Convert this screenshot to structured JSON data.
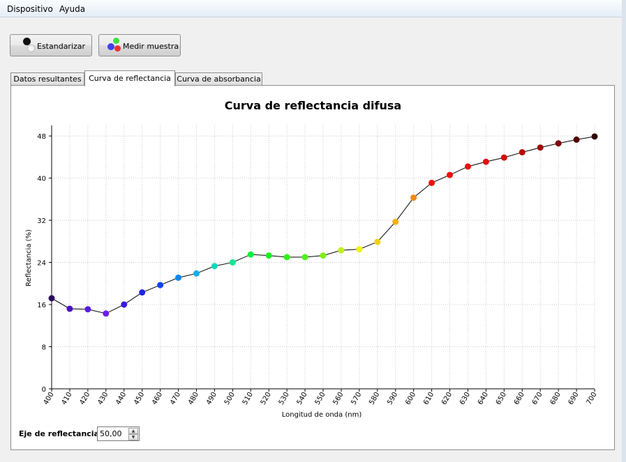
{
  "menu": {
    "items": [
      "Dispositivo",
      "Ayuda"
    ]
  },
  "toolbar": {
    "standardize_label": "Estandarizar",
    "measure_label": "Medir muestra"
  },
  "tabs": [
    {
      "label": "Datos resultantes",
      "active": false
    },
    {
      "label": "Curva de reflectancia",
      "active": true
    },
    {
      "label": "Curva de absorbancia",
      "active": false
    }
  ],
  "reflectance_axis": {
    "label": "Eje de reflectancia:",
    "value": "50,00"
  },
  "colors": {
    "accent_line": "#000000",
    "grid": "#c8c8c8"
  },
  "chart_data": {
    "type": "scatter",
    "title": "Curva de reflectancia difusa",
    "xlabel": "Longitud de onda (nm)",
    "ylabel": "Reflectancia (%)",
    "xlim": [
      400,
      700
    ],
    "ylim": [
      0,
      50
    ],
    "x_ticks": [
      400,
      410,
      420,
      430,
      440,
      450,
      460,
      470,
      480,
      490,
      500,
      510,
      520,
      530,
      540,
      550,
      560,
      570,
      580,
      590,
      600,
      610,
      620,
      630,
      640,
      650,
      660,
      670,
      680,
      690,
      700
    ],
    "y_ticks": [
      0,
      8,
      16,
      24,
      32,
      40,
      48
    ],
    "grid": true,
    "connected": true,
    "series": [
      {
        "x": [
          400,
          410,
          420,
          430,
          440,
          450,
          460,
          470,
          480,
          490,
          500,
          510,
          520,
          530,
          540,
          550,
          560,
          570,
          580,
          590,
          600,
          610,
          620,
          630,
          640,
          650,
          660,
          670,
          680,
          690,
          700
        ],
        "y": [
          17.2,
          15.2,
          15.1,
          14.3,
          16.0,
          18.3,
          19.7,
          21.1,
          21.9,
          23.3,
          24.0,
          25.5,
          25.3,
          25.0,
          25.0,
          25.3,
          26.3,
          26.5,
          27.9,
          31.7,
          36.3,
          39.1,
          40.6,
          42.2,
          43.1,
          43.9,
          44.9,
          45.8,
          46.6,
          47.3,
          47.9
        ],
        "point_colors": [
          "#2e0a5c",
          "#4b10c8",
          "#5a1ae0",
          "#6b1ee8",
          "#3a18e0",
          "#2026e8",
          "#1442f0",
          "#1088f0",
          "#10b0e8",
          "#10d8c0",
          "#10e890",
          "#10f040",
          "#18f020",
          "#30f018",
          "#50f018",
          "#80f018",
          "#c0f018",
          "#f0f018",
          "#f0d010",
          "#f0b010",
          "#f08a10",
          "#f01010",
          "#ee1010",
          "#e81010",
          "#e01010",
          "#d01010",
          "#b80c0c",
          "#a00a0a",
          "#800808",
          "#500606",
          "#300404"
        ]
      }
    ]
  }
}
